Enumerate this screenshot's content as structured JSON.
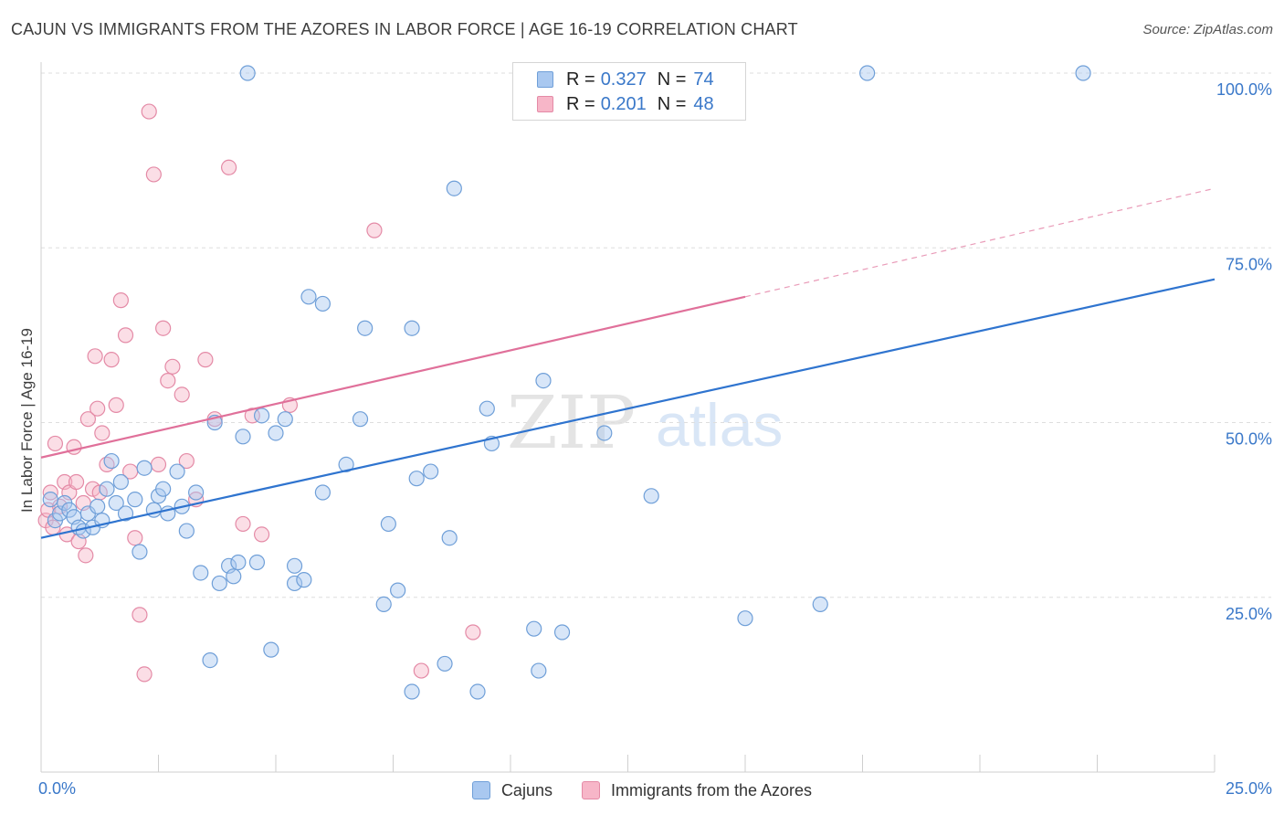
{
  "title": "CAJUN VS IMMIGRANTS FROM THE AZORES IN LABOR FORCE | AGE 16-19 CORRELATION CHART",
  "source": "Source: ZipAtlas.com",
  "watermark": {
    "zip": "ZIP",
    "atlas": "atlas"
  },
  "colors": {
    "cajun_fill": "#a9c8f0",
    "cajun_stroke": "#6f9fd8",
    "cajun_line": "#2f74cf",
    "azores_fill": "#f7b6c8",
    "azores_stroke": "#e48aa6",
    "azores_line": "#e0709a",
    "axis_text": "#3a78c9",
    "grid": "#dedede"
  },
  "legend": {
    "rows": [
      {
        "r_label": "R =",
        "r_value": "0.327",
        "n_label": "N =",
        "n_value": "74"
      },
      {
        "r_label": "R =",
        "r_value": "0.201",
        "n_label": "N =",
        "n_value": "48"
      }
    ]
  },
  "bottom_legend": [
    "Cajuns",
    "Immigrants from the Azores"
  ],
  "chart_data": {
    "type": "scatter",
    "title": "CAJUN VS IMMIGRANTS FROM THE AZORES IN LABOR FORCE | AGE 16-19 CORRELATION CHART",
    "xlabel": "",
    "ylabel": "In Labor Force | Age 16-19",
    "xlim": [
      0,
      25
    ],
    "ylim": [
      0,
      100
    ],
    "x_tick_labels": [
      "0.0%",
      "25.0%"
    ],
    "y_ticks": [
      25,
      50,
      75,
      100
    ],
    "y_tick_labels": [
      "25.0%",
      "50.0%",
      "75.0%",
      "100.0%"
    ],
    "grid": true,
    "legend_position": "top-center",
    "series": [
      {
        "name": "Cajuns",
        "R": 0.327,
        "N": 74,
        "trend": {
          "x": [
            0,
            25
          ],
          "y": [
            33.5,
            70.5
          ],
          "dashed_after": null
        },
        "points": [
          [
            0.2,
            39.0
          ],
          [
            0.3,
            36.0
          ],
          [
            0.4,
            37.0
          ],
          [
            0.5,
            38.5
          ],
          [
            0.6,
            37.5
          ],
          [
            0.7,
            36.5
          ],
          [
            0.8,
            35.0
          ],
          [
            0.9,
            34.5
          ],
          [
            1.0,
            37.0
          ],
          [
            1.1,
            35.0
          ],
          [
            1.2,
            38.0
          ],
          [
            1.3,
            36.0
          ],
          [
            1.4,
            40.5
          ],
          [
            1.5,
            44.5
          ],
          [
            1.6,
            38.5
          ],
          [
            1.7,
            41.5
          ],
          [
            1.8,
            37.0
          ],
          [
            2.0,
            39.0
          ],
          [
            2.1,
            31.5
          ],
          [
            2.2,
            43.5
          ],
          [
            2.4,
            37.5
          ],
          [
            2.5,
            39.5
          ],
          [
            2.6,
            40.5
          ],
          [
            2.7,
            37.0
          ],
          [
            2.9,
            43.0
          ],
          [
            3.0,
            38.0
          ],
          [
            3.1,
            34.5
          ],
          [
            3.3,
            40.0
          ],
          [
            3.4,
            28.5
          ],
          [
            3.6,
            16.0
          ],
          [
            3.7,
            50.0
          ],
          [
            3.8,
            27.0
          ],
          [
            4.0,
            29.5
          ],
          [
            4.1,
            28.0
          ],
          [
            4.2,
            30.0
          ],
          [
            4.3,
            48.0
          ],
          [
            4.4,
            100.0
          ],
          [
            4.6,
            30.0
          ],
          [
            4.7,
            51.0
          ],
          [
            4.9,
            17.5
          ],
          [
            5.0,
            48.5
          ],
          [
            5.2,
            50.5
          ],
          [
            5.4,
            29.5
          ],
          [
            5.4,
            27.0
          ],
          [
            5.6,
            27.5
          ],
          [
            5.7,
            68.0
          ],
          [
            6.0,
            67.0
          ],
          [
            6.0,
            40.0
          ],
          [
            6.5,
            44.0
          ],
          [
            6.8,
            50.5
          ],
          [
            6.9,
            63.5
          ],
          [
            7.3,
            24.0
          ],
          [
            7.4,
            35.5
          ],
          [
            7.6,
            26.0
          ],
          [
            7.9,
            63.5
          ],
          [
            7.9,
            11.5
          ],
          [
            8.0,
            42.0
          ],
          [
            8.3,
            43.0
          ],
          [
            8.6,
            15.5
          ],
          [
            8.7,
            33.5
          ],
          [
            8.8,
            83.5
          ],
          [
            9.3,
            11.5
          ],
          [
            9.5,
            52.0
          ],
          [
            9.6,
            47.0
          ],
          [
            10.5,
            20.5
          ],
          [
            10.6,
            14.5
          ],
          [
            10.7,
            56.0
          ],
          [
            11.1,
            20.0
          ],
          [
            12.0,
            48.5
          ],
          [
            13.0,
            39.5
          ],
          [
            15.0,
            22.0
          ],
          [
            16.6,
            24.0
          ],
          [
            17.6,
            100.0
          ],
          [
            22.2,
            100.0
          ]
        ]
      },
      {
        "name": "Immigrants from the Azores",
        "R": 0.201,
        "N": 48,
        "trend": {
          "x": [
            0,
            15
          ],
          "y": [
            45.0,
            68.0
          ],
          "dashed_to": [
            25,
            83.5
          ]
        },
        "points": [
          [
            0.1,
            36.0
          ],
          [
            0.15,
            37.5
          ],
          [
            0.2,
            40.0
          ],
          [
            0.3,
            47.0
          ],
          [
            0.4,
            38.0
          ],
          [
            0.5,
            41.5
          ],
          [
            0.55,
            34.0
          ],
          [
            0.6,
            40.0
          ],
          [
            0.7,
            46.5
          ],
          [
            0.75,
            41.5
          ],
          [
            0.8,
            33.0
          ],
          [
            0.9,
            38.5
          ],
          [
            0.95,
            31.0
          ],
          [
            1.0,
            50.5
          ],
          [
            1.1,
            40.5
          ],
          [
            1.15,
            59.5
          ],
          [
            1.2,
            52.0
          ],
          [
            1.3,
            48.5
          ],
          [
            1.4,
            44.0
          ],
          [
            1.5,
            59.0
          ],
          [
            1.6,
            52.5
          ],
          [
            1.7,
            67.5
          ],
          [
            1.8,
            62.5
          ],
          [
            1.9,
            43.0
          ],
          [
            2.0,
            33.5
          ],
          [
            2.1,
            22.5
          ],
          [
            2.2,
            14.0
          ],
          [
            2.3,
            94.5
          ],
          [
            2.4,
            85.5
          ],
          [
            2.5,
            44.0
          ],
          [
            2.6,
            63.5
          ],
          [
            2.7,
            56.0
          ],
          [
            2.8,
            58.0
          ],
          [
            3.0,
            54.0
          ],
          [
            3.1,
            44.5
          ],
          [
            3.3,
            39.0
          ],
          [
            3.5,
            59.0
          ],
          [
            3.7,
            50.5
          ],
          [
            4.0,
            86.5
          ],
          [
            4.3,
            35.5
          ],
          [
            4.5,
            51.0
          ],
          [
            4.7,
            34.0
          ],
          [
            5.3,
            52.5
          ],
          [
            7.1,
            77.5
          ],
          [
            8.1,
            14.5
          ],
          [
            9.2,
            20.0
          ],
          [
            0.25,
            35.0
          ],
          [
            1.25,
            40.0
          ]
        ]
      }
    ]
  }
}
